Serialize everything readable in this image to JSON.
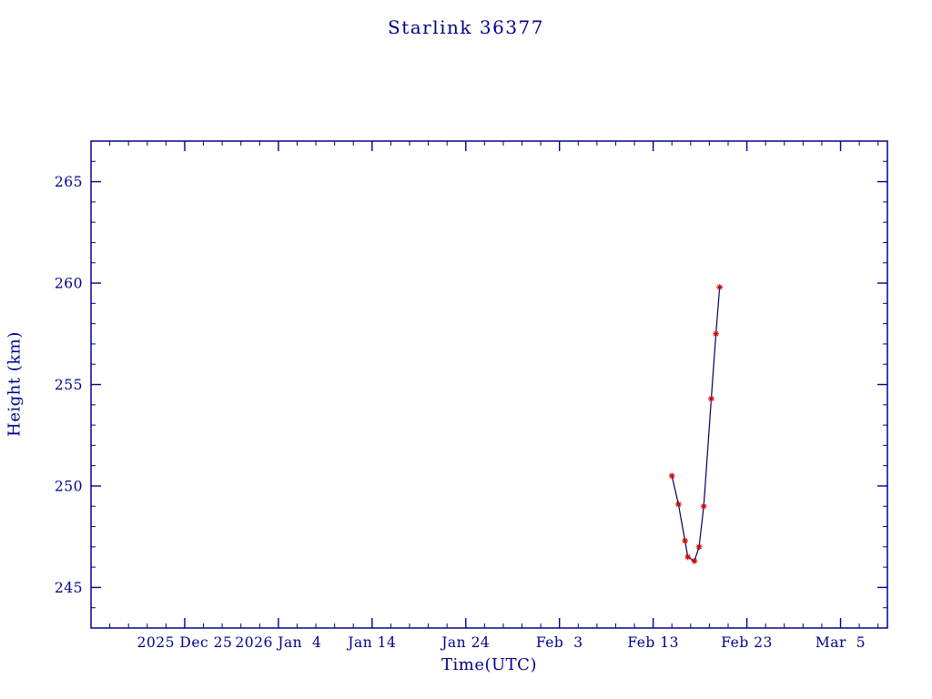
{
  "page": {
    "background": "#ffffff"
  },
  "chart_data": {
    "type": "line",
    "title": "Starlink 36377",
    "xlabel": "Time(UTC)",
    "ylabel": "Height (km)",
    "x_axis_unit": "days, 0 = 2025 Dec 15",
    "xlim": [
      0,
      85
    ],
    "ylim": [
      243,
      267
    ],
    "grid": false,
    "legend": null,
    "x_ticks": [
      {
        "pos": 10,
        "label": "2025 Dec 25"
      },
      {
        "pos": 20,
        "label": "2026 Jan  4"
      },
      {
        "pos": 30,
        "label": "Jan 14"
      },
      {
        "pos": 40,
        "label": "Jan 24"
      },
      {
        "pos": 50,
        "label": "Feb  3"
      },
      {
        "pos": 60,
        "label": "Feb 13"
      },
      {
        "pos": 70,
        "label": "Feb 23"
      },
      {
        "pos": 80,
        "label": "Mar  5"
      }
    ],
    "x_minor_step": 2,
    "y_ticks": [
      245,
      250,
      255,
      260,
      265
    ],
    "y_minor_step": 1,
    "series": [
      {
        "name": "height_km",
        "marker": "asterisk",
        "points": [
          {
            "x": 62.0,
            "y": 250.5
          },
          {
            "x": 62.7,
            "y": 249.1
          },
          {
            "x": 63.4,
            "y": 247.3
          },
          {
            "x": 63.7,
            "y": 246.5
          },
          {
            "x": 64.4,
            "y": 246.3
          },
          {
            "x": 64.9,
            "y": 247.0
          },
          {
            "x": 65.4,
            "y": 249.0
          },
          {
            "x": 66.2,
            "y": 254.3
          },
          {
            "x": 66.7,
            "y": 257.5
          },
          {
            "x": 67.1,
            "y": 259.8
          }
        ]
      }
    ],
    "colors": {
      "axis": "#00008B",
      "text": "#00008B",
      "line": "#000060",
      "marker": "#CC0000"
    }
  }
}
